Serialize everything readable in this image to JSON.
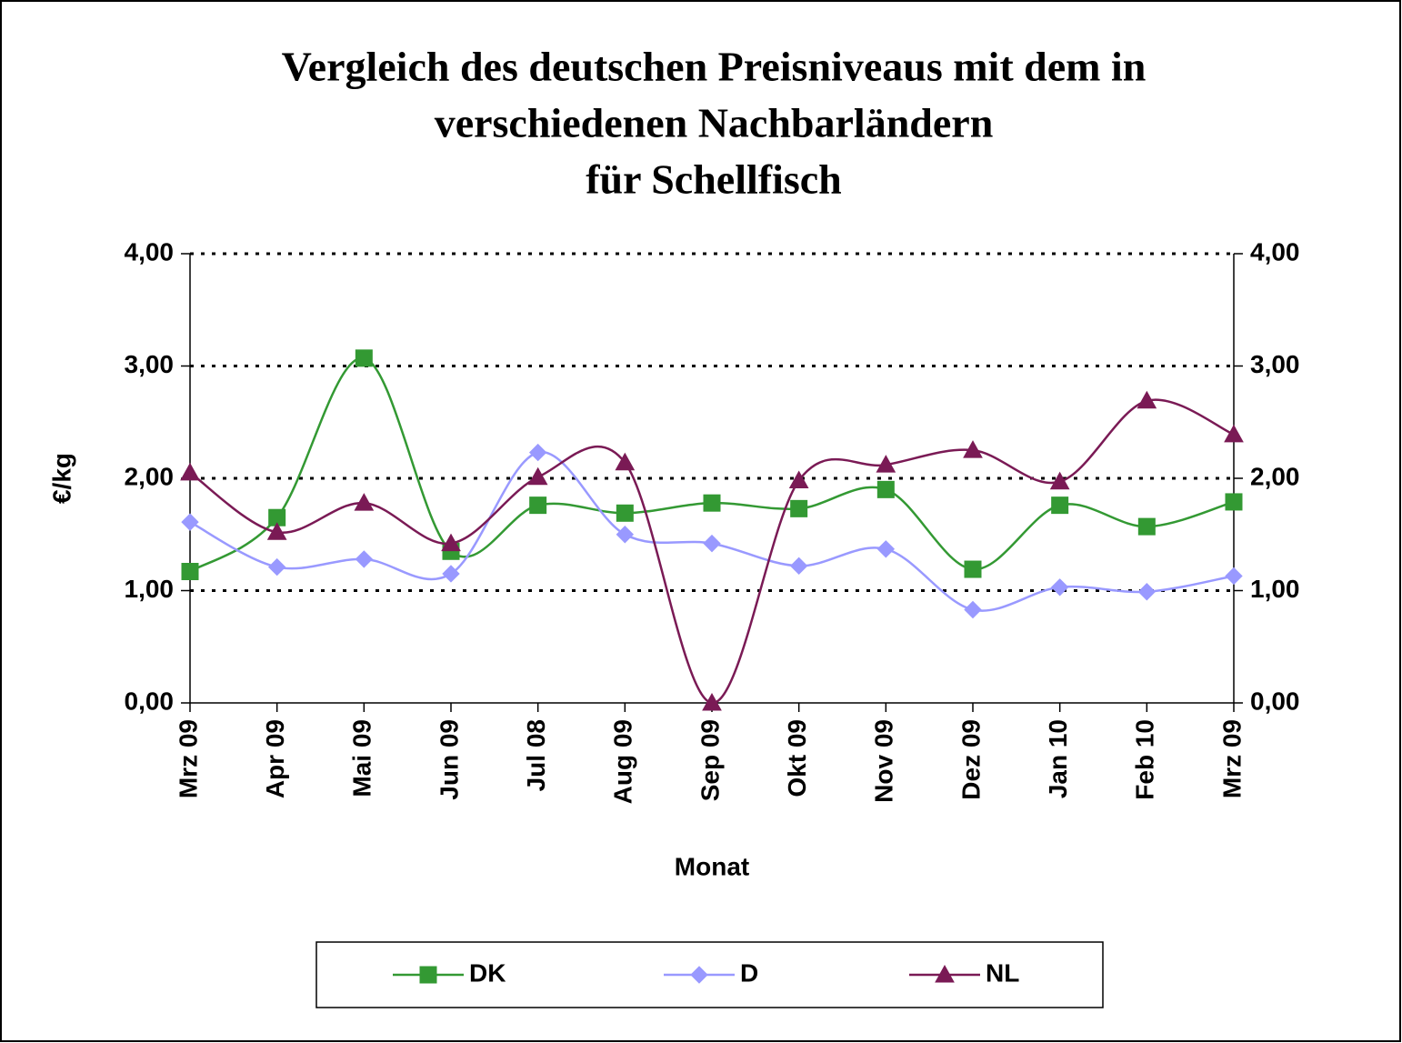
{
  "chart_data": {
    "type": "line",
    "title": [
      "Vergleich des deutschen Preisniveaus mit dem in",
      "verschiedenen Nachbarländern",
      "für Schellfisch"
    ],
    "x_label": "Monat",
    "y_label": "€/kg",
    "categories": [
      "Mrz 09",
      "Apr 09",
      "Mai 09",
      "Jun 09",
      "Jul 08",
      "Aug 09",
      "Sep 09",
      "Okt 09",
      "Nov 09",
      "Dez 09",
      "Jan 10",
      "Feb 10",
      "Mrz 09"
    ],
    "series": [
      {
        "name": "DK",
        "color": "#339933",
        "marker": "square",
        "values": [
          1.17,
          1.65,
          3.07,
          1.35,
          1.76,
          1.69,
          1.78,
          1.73,
          1.9,
          1.19,
          1.76,
          1.57,
          1.79
        ]
      },
      {
        "name": "D",
        "color": "#9999ff",
        "marker": "diamond",
        "values": [
          1.61,
          1.21,
          1.28,
          1.15,
          2.23,
          1.5,
          1.42,
          1.22,
          1.37,
          0.83,
          1.03,
          0.99,
          1.13
        ]
      },
      {
        "name": "NL",
        "color": "#7a1a55",
        "marker": "triangle",
        "values": [
          2.05,
          1.52,
          1.78,
          1.42,
          2.01,
          2.14,
          0.0,
          1.98,
          2.12,
          2.25,
          1.97,
          2.69,
          2.39
        ]
      }
    ],
    "ylim": [
      0,
      4
    ],
    "yticks": [
      {
        "value": 0,
        "label": "0,00"
      },
      {
        "value": 1,
        "label": "1,00"
      },
      {
        "value": 2,
        "label": "2,00"
      },
      {
        "value": 3,
        "label": "3,00"
      },
      {
        "value": 4,
        "label": "4,00"
      }
    ],
    "y2lim": [
      0,
      4
    ],
    "y2ticks": [
      {
        "value": 0,
        "label": "0,00"
      },
      {
        "value": 1,
        "label": "1,00"
      },
      {
        "value": 2,
        "label": "2,00"
      },
      {
        "value": 3,
        "label": "3,00"
      },
      {
        "value": 4,
        "label": "4,00"
      }
    ],
    "grid": true,
    "smooth": true,
    "legend": "bottom"
  }
}
